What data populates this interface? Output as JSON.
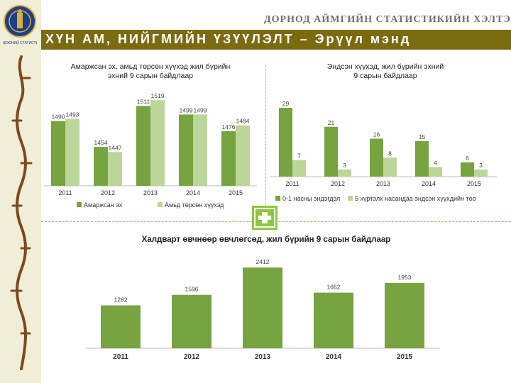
{
  "header": {
    "org_name": "ДОРНОД АЙМГИЙН СТАТИСТИКИЙН ХЭЛТЭС",
    "title": "ХҮН АМ, НИЙГМИЙН ҮЗҮҮЛЭЛТ – Эрүүл мэнд",
    "logo_text": "ҮНДЭСНИЙ СТАТИСТИК"
  },
  "colors": {
    "dark_green": "#77a341",
    "light_green": "#bcd69a",
    "banner": "#7a6a10",
    "sidebar": "#f1eed8",
    "plus": "#8dc63f"
  },
  "chart_data": [
    {
      "type": "bar",
      "title_lines": [
        "Амаржсан эх, амьд төрсөн хүүхэд жил бүрийн",
        "эхний 9 сарын байдлаар"
      ],
      "categories": [
        "2011",
        "2012",
        "2013",
        "2014",
        "2015"
      ],
      "series": [
        {
          "name": "Амаржсан эх",
          "values": [
            1490,
            1454,
            1511,
            1499,
            1476
          ]
        },
        {
          "name": "Амьд төрсөн хүүхэд",
          "values": [
            1493,
            1447,
            1519,
            1499,
            1484
          ]
        }
      ],
      "ylim": [
        1400,
        1530
      ],
      "legend": "bottom"
    },
    {
      "type": "bar",
      "title_lines": [
        "Эндсэн хүүхэд, жил бүрийн эхний",
        "9 сарын байдлаар"
      ],
      "categories": [
        "2011",
        "2012",
        "2013",
        "2014",
        "2015"
      ],
      "series": [
        {
          "name": "0-1 насны эндэгдэл",
          "values": [
            29,
            21,
            16,
            15,
            6
          ]
        },
        {
          "name": "5 хүртэлх насандаа эндсэн хүүхдийн тоо",
          "values": [
            7,
            3,
            8,
            4,
            3
          ]
        }
      ],
      "ylim": [
        0,
        32
      ],
      "legend": "bottom"
    },
    {
      "type": "bar",
      "title": "Халдварт өвчнөөр өвчлөгсөд, жил бүрийн  9 сарын байдлаар",
      "categories": [
        "2011",
        "2012",
        "2013",
        "2014",
        "2015"
      ],
      "values": [
        1282,
        1596,
        2412,
        1662,
        1953
      ],
      "ylim": [
        0,
        2650
      ]
    }
  ]
}
